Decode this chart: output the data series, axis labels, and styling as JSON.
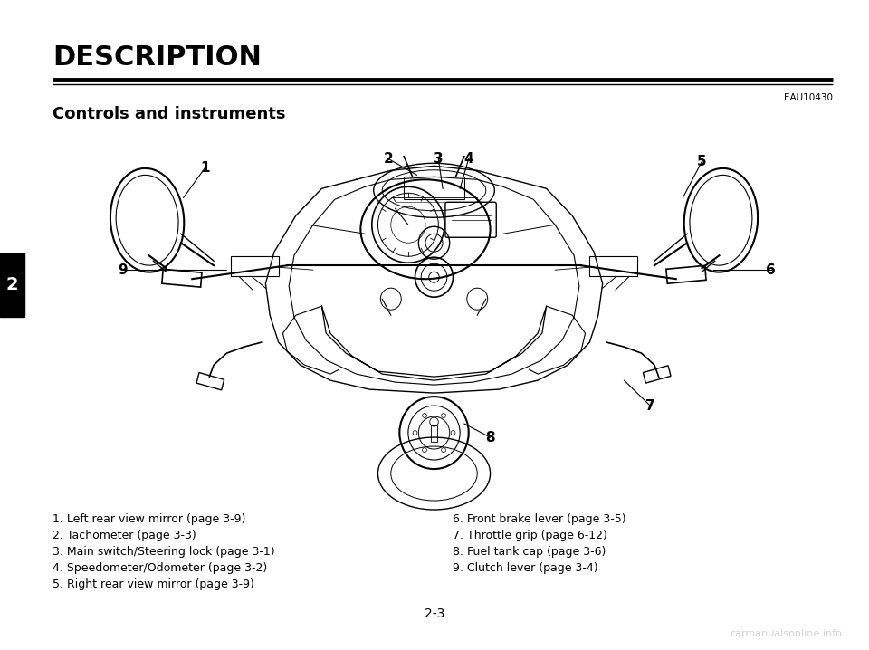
{
  "title": "DESCRIPTION",
  "subtitle_code": "EAU10430",
  "section_title": "Controls and instruments",
  "page_number": "2-3",
  "chapter_number": "2",
  "left_legend": [
    "1. Left rear view mirror (page 3-9)",
    "2. Tachometer (page 3-3)",
    "3. Main switch/Steering lock (page 3-1)",
    "4. Speedometer/Odometer (page 3-2)",
    "5. Right rear view mirror (page 3-9)"
  ],
  "right_legend": [
    "6. Front brake lever (page 3-5)",
    "7. Throttle grip (page 6-12)",
    "8. Fuel tank cap (page 3-6)",
    "9. Clutch lever (page 3-4)"
  ],
  "bg_color": "#ffffff",
  "text_color": "#000000",
  "title_color": "#000000",
  "line_color": "#000000",
  "sidebar_color": "#000000",
  "title_fontsize": 22,
  "section_fontsize": 13,
  "legend_fontsize": 9,
  "label_fontsize": 13,
  "page_num_fontsize": 10,
  "code_fontsize": 7.5,
  "watermark_color": "#aaaaaa",
  "watermark_text": "carmanualsonline.info"
}
